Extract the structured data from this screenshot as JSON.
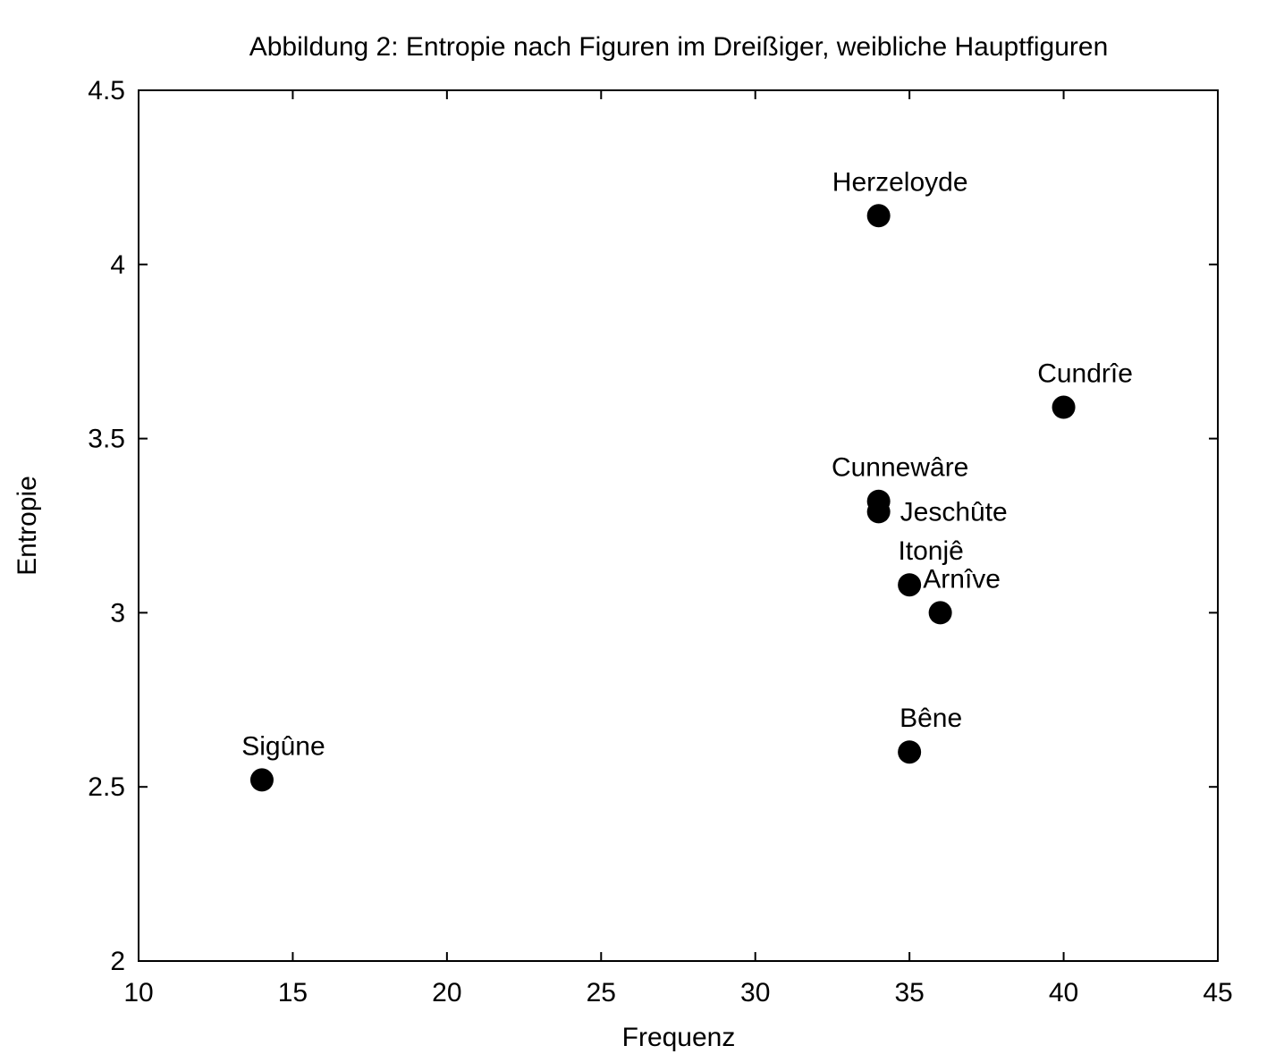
{
  "chart_data": {
    "type": "scatter",
    "title": "Abbildung 2: Entropie nach Figuren im Dreißiger, weibliche Hauptfiguren",
    "xlabel": "Frequenz",
    "ylabel": "Entropie",
    "xlim": [
      10,
      45
    ],
    "ylim": [
      2,
      4.5
    ],
    "xticks": [
      "10",
      "15",
      "20",
      "25",
      "30",
      "35",
      "40",
      "45"
    ],
    "yticks": [
      "2",
      "2.5",
      "3",
      "3.5",
      "4",
      "4.5"
    ],
    "grid": false,
    "points": [
      {
        "label": "Herzeloyde",
        "x": 34,
        "y": 4.14,
        "label_pos": "above"
      },
      {
        "label": "Cundrîe",
        "x": 40,
        "y": 3.59,
        "label_pos": "above"
      },
      {
        "label": "Cunnewâre",
        "x": 34,
        "y": 3.32,
        "label_pos": "above"
      },
      {
        "label": "Jeschûte",
        "x": 34,
        "y": 3.29,
        "label_pos": "right"
      },
      {
        "label": "Itonjê",
        "x": 35,
        "y": 3.08,
        "label_pos": "above"
      },
      {
        "label": "Arnîve",
        "x": 36,
        "y": 3.0,
        "label_pos": "above"
      },
      {
        "label": "Bêne",
        "x": 35,
        "y": 2.6,
        "label_pos": "above"
      },
      {
        "label": "Sigûne",
        "x": 14,
        "y": 2.52,
        "label_pos": "above"
      }
    ]
  }
}
